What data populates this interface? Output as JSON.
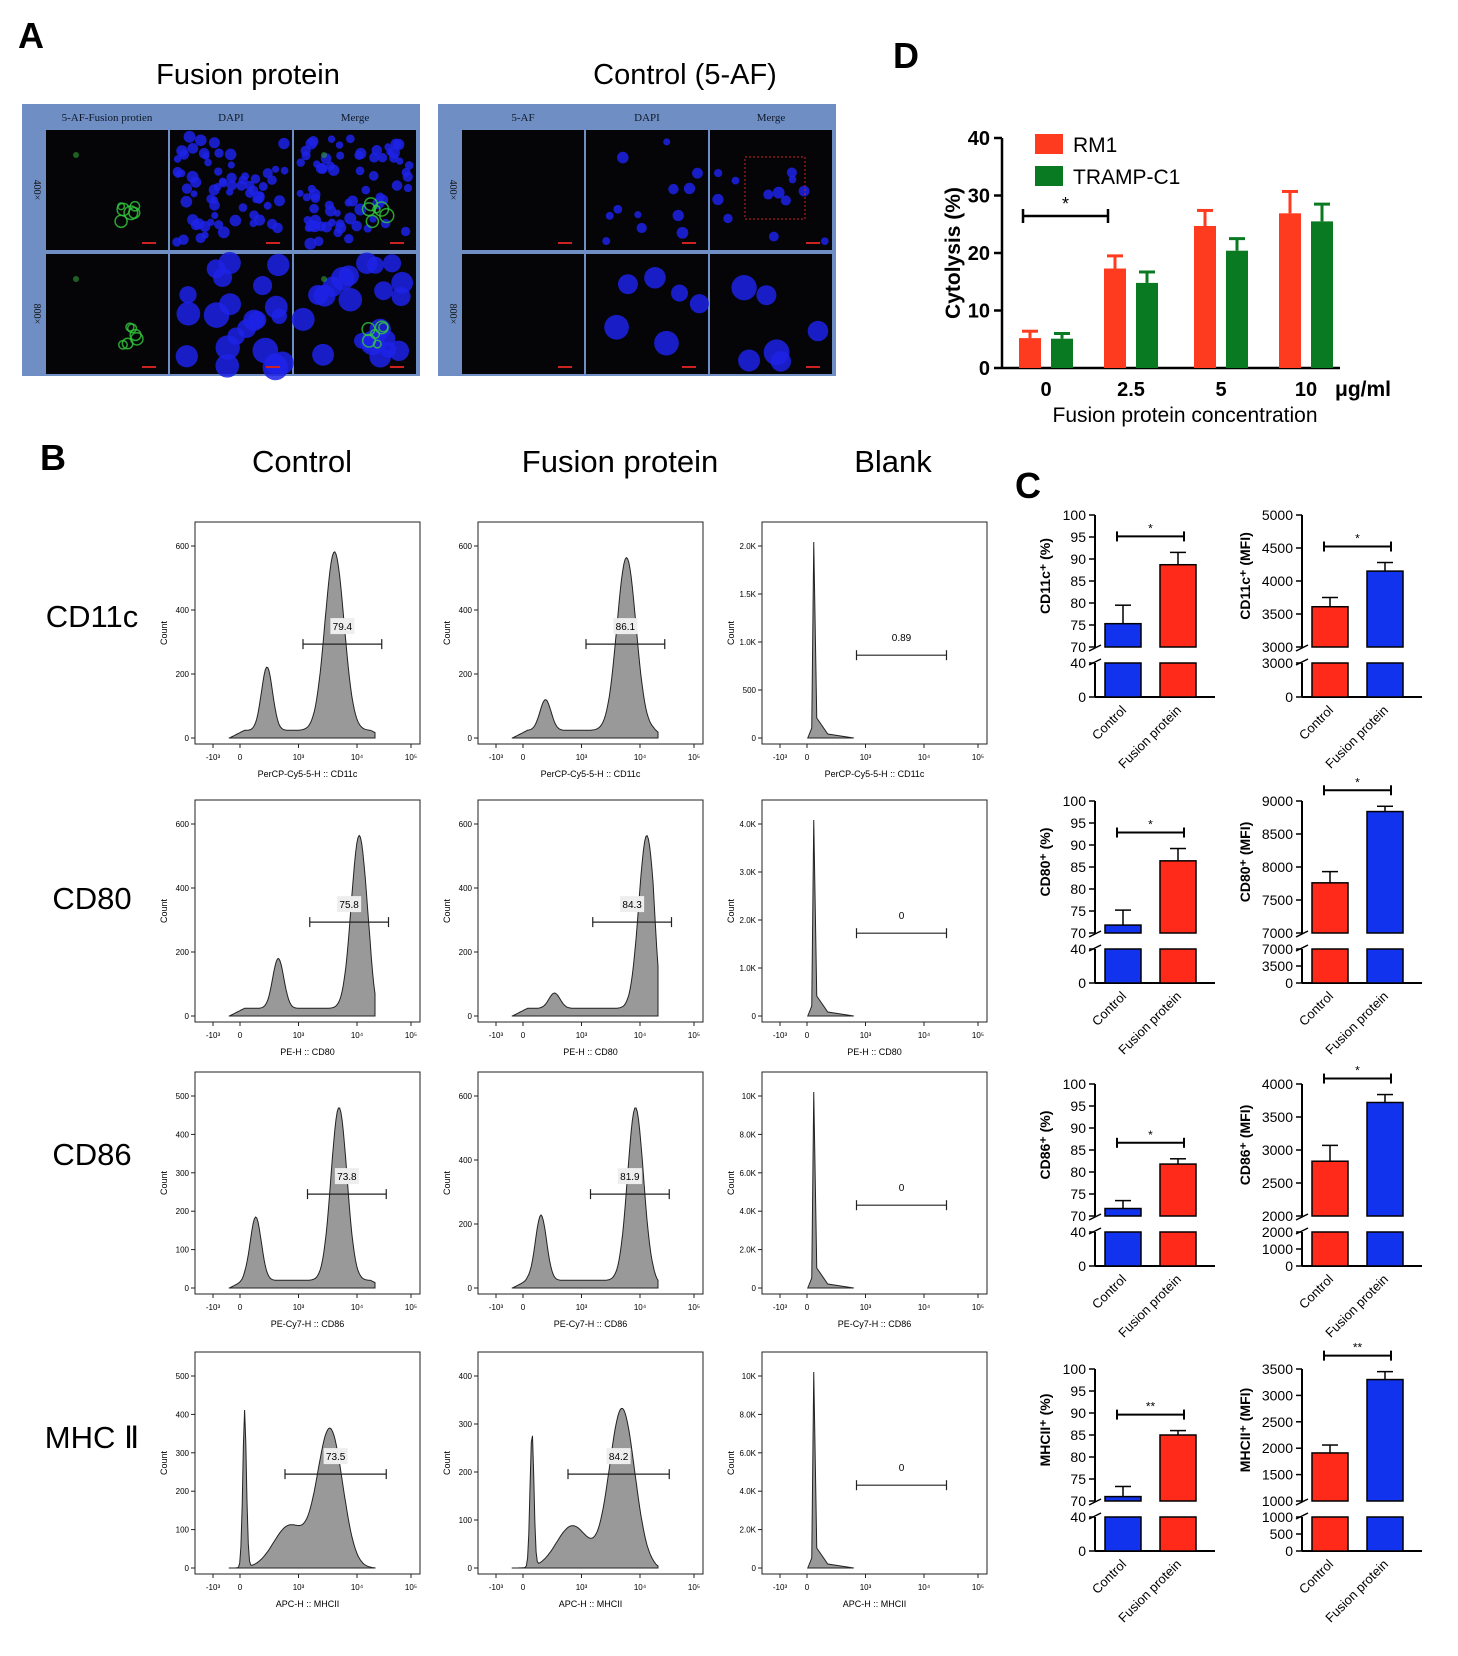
{
  "panel_letters": {
    "A": "A",
    "B": "B",
    "C": "C",
    "D": "D"
  },
  "panel_A": {
    "groups": [
      {
        "title": "Fusion protein",
        "columns": [
          "5-AF-Fusion protien",
          "DAPI",
          "Merge"
        ],
        "rows": [
          "400×",
          "800×"
        ],
        "green": true
      },
      {
        "title": "Control (5-AF)",
        "columns": [
          "5-AF",
          "DAPI",
          "Merge"
        ],
        "rows": [
          "400×",
          "800×"
        ],
        "green": false
      }
    ]
  },
  "panel_B": {
    "column_titles": [
      "Control",
      "Fusion protein",
      "Blank"
    ],
    "y_axis_label": "Count",
    "markers": [
      {
        "name": "CD11c",
        "xlabel": "PerCP-Cy5-5-H :: CD11c",
        "gates": [
          "79.4",
          "86.1",
          "0.89"
        ],
        "yticks": [
          [
            "0",
            "200",
            "400",
            "600"
          ],
          [
            "0",
            "200",
            "400",
            "600"
          ],
          [
            "0",
            "500",
            "1.0K",
            "1.5K",
            "2.0K"
          ]
        ]
      },
      {
        "name": "CD80",
        "xlabel": "PE-H :: CD80",
        "gates": [
          "75.8",
          "84.3",
          "0"
        ],
        "yticks": [
          [
            "0",
            "200",
            "400",
            "600"
          ],
          [
            "0",
            "200",
            "400",
            "600"
          ],
          [
            "0",
            "1.0K",
            "2.0K",
            "3.0K",
            "4.0K"
          ]
        ]
      },
      {
        "name": "CD86",
        "xlabel": "PE-Cy7-H :: CD86",
        "gates": [
          "73.8",
          "81.9",
          "0"
        ],
        "yticks": [
          [
            "0",
            "100",
            "200",
            "300",
            "400",
            "500"
          ],
          [
            "0",
            "200",
            "400",
            "600"
          ],
          [
            "0",
            "2.0K",
            "4.0K",
            "6.0K",
            "8.0K",
            "10K"
          ]
        ]
      },
      {
        "name": "MHC Ⅱ",
        "xlabel": "APC-H :: MHCII",
        "gates": [
          "73.5",
          "84.2",
          "0"
        ],
        "yticks": [
          [
            "0",
            "100",
            "200",
            "300",
            "400",
            "500"
          ],
          [
            "0",
            "100",
            "200",
            "300",
            "400"
          ],
          [
            "0",
            "2.0K",
            "4.0K",
            "6.0K",
            "8.0K",
            "10K"
          ]
        ]
      }
    ],
    "xticks": [
      "-10³",
      "0",
      "10³",
      "10⁴",
      "10⁵"
    ]
  },
  "chart_data": [
    {
      "type": "bar",
      "panel": "D",
      "categories": [
        "0",
        "2.5",
        "5",
        "10"
      ],
      "x_unit": "μg/ml",
      "xlabel": "Fusion protein concentration",
      "ylabel": "Cytolysis (%)",
      "ylim": [
        0,
        40
      ],
      "yticks": [
        "0",
        "10",
        "20",
        "30",
        "40"
      ],
      "legend_position": "top-left",
      "series": [
        {
          "name": "RM1",
          "color": "#ff3b1f",
          "values": [
            5.2,
            17.3,
            24.7,
            26.9
          ],
          "errors": [
            1.2,
            2.2,
            2.7,
            3.8
          ]
        },
        {
          "name": "TRAMP-C1",
          "color": "#0a7a22",
          "values": [
            5.1,
            14.8,
            20.4,
            25.5
          ],
          "errors": [
            0.9,
            1.9,
            2.1,
            3.0
          ]
        }
      ],
      "annotations": [
        {
          "text": "*",
          "between": [
            "0",
            "2.5"
          ]
        }
      ]
    },
    {
      "type": "bar",
      "panel": "C",
      "ylabel": "CD11c⁺ (%)",
      "categories": [
        "Control",
        "Fusion protein"
      ],
      "values": [
        75.3,
        88.7
      ],
      "errors": [
        4.2,
        2.8
      ],
      "colors": [
        "#1133ee",
        "#ff2a1a"
      ],
      "ylim_upper": [
        70,
        100
      ],
      "yticks_upper": [
        "70",
        "75",
        "80",
        "85",
        "90",
        "95",
        "100"
      ],
      "ylim_lower": [
        0,
        40
      ],
      "yticks_lower": [
        "0",
        "40"
      ],
      "significance": "*"
    },
    {
      "type": "bar",
      "panel": "C",
      "ylabel": "CD11c⁺ (MFI)",
      "categories": [
        "Control",
        "Fusion protein"
      ],
      "values": [
        3610,
        4150
      ],
      "errors": [
        140,
        130
      ],
      "colors": [
        "#ff2a1a",
        "#1133ee"
      ],
      "ylim_upper": [
        3000,
        5000
      ],
      "yticks_upper": [
        "3000",
        "3500",
        "4000",
        "4500",
        "5000"
      ],
      "ylim_lower": [
        0,
        3000
      ],
      "yticks_lower": [
        "0",
        "3000"
      ],
      "significance": "*"
    },
    {
      "type": "bar",
      "panel": "C",
      "ylabel": "CD80⁺ (%)",
      "categories": [
        "Control",
        "Fusion protein"
      ],
      "values": [
        71.8,
        86.4
      ],
      "errors": [
        3.4,
        2.8
      ],
      "colors": [
        "#1133ee",
        "#ff2a1a"
      ],
      "ylim_upper": [
        70,
        100
      ],
      "yticks_upper": [
        "70",
        "75",
        "80",
        "85",
        "90",
        "95",
        "100"
      ],
      "ylim_lower": [
        0,
        40
      ],
      "yticks_lower": [
        "0",
        "40"
      ],
      "significance": "*"
    },
    {
      "type": "bar",
      "panel": "C",
      "ylabel": "CD80⁺ (MFI)",
      "categories": [
        "Control",
        "Fusion protein"
      ],
      "values": [
        7760,
        8840
      ],
      "errors": [
        170,
        80
      ],
      "colors": [
        "#ff2a1a",
        "#1133ee"
      ],
      "ylim_upper": [
        7000,
        9000
      ],
      "yticks_upper": [
        "7000",
        "7500",
        "8000",
        "8500",
        "9000"
      ],
      "ylim_lower": [
        0,
        7000
      ],
      "yticks_lower": [
        "0",
        "3500",
        "7000"
      ],
      "significance": "*"
    },
    {
      "type": "bar",
      "panel": "C",
      "ylabel": "CD86⁺ (%)",
      "categories": [
        "Control",
        "Fusion protein"
      ],
      "values": [
        71.7,
        81.8
      ],
      "errors": [
        1.8,
        1.2
      ],
      "colors": [
        "#1133ee",
        "#ff2a1a"
      ],
      "ylim_upper": [
        70,
        100
      ],
      "yticks_upper": [
        "70",
        "75",
        "80",
        "85",
        "90",
        "95",
        "100"
      ],
      "ylim_lower": [
        0,
        40
      ],
      "yticks_lower": [
        "0",
        "40"
      ],
      "significance": "*"
    },
    {
      "type": "bar",
      "panel": "C",
      "ylabel": "CD86⁺ (MFI)",
      "categories": [
        "Control",
        "Fusion protein"
      ],
      "values": [
        2830,
        3720
      ],
      "errors": [
        240,
        120
      ],
      "colors": [
        "#ff2a1a",
        "#1133ee"
      ],
      "ylim_upper": [
        2000,
        4000
      ],
      "yticks_upper": [
        "2000",
        "2500",
        "3000",
        "3500",
        "4000"
      ],
      "ylim_lower": [
        0,
        2000
      ],
      "yticks_lower": [
        "0",
        "1000",
        "2000"
      ],
      "significance": "*"
    },
    {
      "type": "bar",
      "panel": "C",
      "ylabel": "MHCII⁺ (%)",
      "categories": [
        "Control",
        "Fusion protein"
      ],
      "values": [
        71.0,
        85.0
      ],
      "errors": [
        2.3,
        1.0
      ],
      "colors": [
        "#1133ee",
        "#ff2a1a"
      ],
      "ylim_upper": [
        70,
        100
      ],
      "yticks_upper": [
        "70",
        "75",
        "80",
        "85",
        "90",
        "95",
        "100"
      ],
      "ylim_lower": [
        0,
        40
      ],
      "yticks_lower": [
        "0",
        "40"
      ],
      "significance": "**"
    },
    {
      "type": "bar",
      "panel": "C",
      "ylabel": "MHCII⁺ (MFI)",
      "categories": [
        "Control",
        "Fusion protein"
      ],
      "values": [
        1910,
        3300
      ],
      "errors": [
        150,
        150
      ],
      "colors": [
        "#ff2a1a",
        "#1133ee"
      ],
      "ylim_upper": [
        1000,
        3500
      ],
      "yticks_upper": [
        "1000",
        "1500",
        "2000",
        "2500",
        "3000",
        "3500"
      ],
      "ylim_lower": [
        0,
        1000
      ],
      "yticks_lower": [
        "0",
        "500",
        "1000"
      ],
      "significance": "**"
    }
  ]
}
